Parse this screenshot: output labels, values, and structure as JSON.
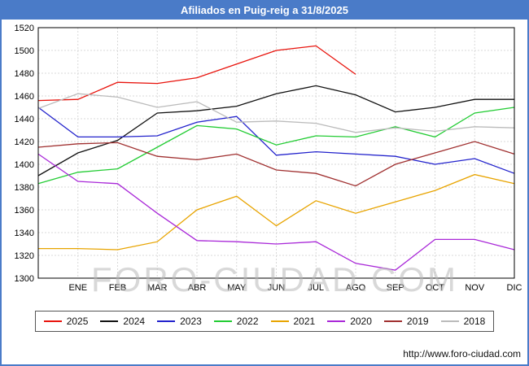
{
  "title": "Afiliados en Puig-reig a 31/8/2025",
  "watermark": "FORO-CIUDAD.COM",
  "footer": {
    "url": "http://www.foro-ciudad.com"
  },
  "chart_data": {
    "type": "line",
    "title": "Afiliados en Puig-reig a 31/8/2025",
    "categories": [
      "",
      "ENE",
      "FEB",
      "MAR",
      "ABR",
      "MAY",
      "JUN",
      "JUL",
      "AGO",
      "SEP",
      "OCT",
      "NOV",
      "DIC"
    ],
    "xlabel": "",
    "ylabel": "",
    "ylim": [
      1300,
      1520
    ],
    "ytick_step": 20,
    "grid": true,
    "legend_position": "bottom",
    "series": [
      {
        "name": "2025",
        "color": "#e8130c",
        "values": [
          1456,
          1457,
          1472,
          1471,
          1476,
          1488,
          1500,
          1504,
          1479
        ]
      },
      {
        "name": "2024",
        "color": "#111111",
        "values": [
          1390,
          1410,
          1421,
          1445,
          1447,
          1451,
          1462,
          1469,
          1461,
          1446,
          1450,
          1457,
          1457
        ]
      },
      {
        "name": "2023",
        "color": "#2222cc",
        "values": [
          1450,
          1424,
          1424,
          1425,
          1437,
          1442,
          1408,
          1411,
          1409,
          1407,
          1400,
          1405,
          1392
        ]
      },
      {
        "name": "2022",
        "color": "#22cc33",
        "values": [
          1383,
          1393,
          1396,
          1415,
          1434,
          1431,
          1417,
          1425,
          1424,
          1433,
          1424,
          1445,
          1450
        ]
      },
      {
        "name": "2021",
        "color": "#e8a400",
        "values": [
          1326,
          1326,
          1325,
          1332,
          1360,
          1372,
          1346,
          1368,
          1357,
          1367,
          1377,
          1391,
          1383
        ]
      },
      {
        "name": "2020",
        "color": "#a928d8",
        "values": [
          1409,
          1385,
          1383,
          1357,
          1333,
          1332,
          1330,
          1332,
          1313,
          1307,
          1334,
          1334,
          1325
        ]
      },
      {
        "name": "2019",
        "color": "#a03030",
        "values": [
          1415,
          1418,
          1419,
          1407,
          1404,
          1409,
          1395,
          1392,
          1381,
          1400,
          1410,
          1420,
          1409
        ]
      },
      {
        "name": "2018",
        "color": "#bbbbbb",
        "values": [
          1449,
          1462,
          1459,
          1450,
          1455,
          1437,
          1438,
          1436,
          1428,
          1432,
          1429,
          1433,
          1432
        ]
      }
    ]
  }
}
